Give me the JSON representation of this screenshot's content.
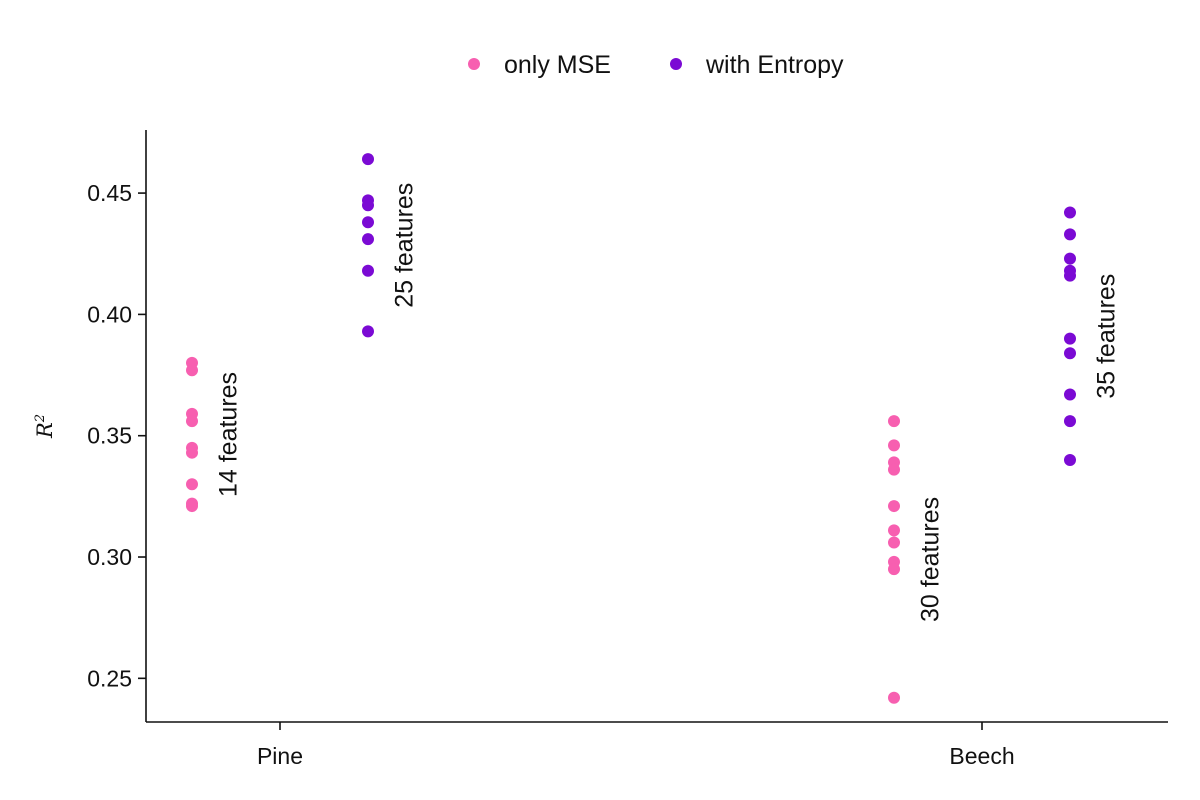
{
  "chart_data": {
    "type": "scatter",
    "title": "",
    "xlabel": "",
    "ylabel": "R²",
    "ylabel_parts": {
      "base": "R",
      "sup": "2"
    },
    "categories": [
      "Pine",
      "Beech"
    ],
    "ylim": [
      0.232,
      0.476
    ],
    "y_ticks": [
      0.25,
      0.3,
      0.35,
      0.4,
      0.45
    ],
    "y_tick_labels": [
      "0.25",
      "0.30",
      "0.35",
      "0.40",
      "0.45"
    ],
    "grid": false,
    "legend_position": "top-center",
    "series": [
      {
        "name": "only MSE",
        "color": "#f75fb0",
        "groups": [
          {
            "category": "Pine",
            "annotation": "14 features",
            "values": [
              0.38,
              0.377,
              0.359,
              0.356,
              0.345,
              0.343,
              0.33,
              0.322,
              0.321
            ]
          },
          {
            "category": "Beech",
            "annotation": "30 features",
            "values": [
              0.356,
              0.346,
              0.339,
              0.336,
              0.321,
              0.311,
              0.306,
              0.298,
              0.295,
              0.242
            ]
          }
        ]
      },
      {
        "name": "with Entropy",
        "color": "#7b0ad4",
        "groups": [
          {
            "category": "Pine",
            "annotation": "25 features",
            "values": [
              0.464,
              0.447,
              0.445,
              0.438,
              0.431,
              0.418,
              0.393
            ]
          },
          {
            "category": "Beech",
            "annotation": "35 features",
            "values": [
              0.442,
              0.433,
              0.423,
              0.418,
              0.416,
              0.39,
              0.384,
              0.367,
              0.356,
              0.34
            ]
          }
        ]
      }
    ]
  }
}
